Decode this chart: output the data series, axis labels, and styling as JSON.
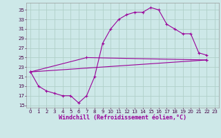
{
  "background_color": "#cde8e8",
  "grid_color": "#b0d0c8",
  "line_color": "#990099",
  "marker": "+",
  "xlabel": "Windchill (Refroidissement éolien,°C)",
  "xlabel_fontsize": 6,
  "xlim": [
    -0.5,
    23.5
  ],
  "ylim": [
    14.5,
    36.5
  ],
  "xticks": [
    0,
    1,
    2,
    3,
    4,
    5,
    6,
    7,
    8,
    9,
    10,
    11,
    12,
    13,
    14,
    15,
    16,
    17,
    18,
    19,
    20,
    21,
    22,
    23
  ],
  "yticks": [
    15,
    17,
    19,
    21,
    23,
    25,
    27,
    29,
    31,
    33,
    35
  ],
  "tick_fontsize": 5,
  "line1_x": [
    0,
    1,
    2,
    3,
    4,
    5,
    6,
    7,
    8,
    9,
    10,
    11,
    12,
    13,
    14,
    15,
    16,
    17,
    18,
    19,
    20,
    21,
    22
  ],
  "line1_y": [
    22,
    19,
    18,
    17.5,
    17,
    17,
    15.5,
    17,
    21,
    28,
    31,
    33,
    34,
    34.5,
    34.5,
    35.5,
    35,
    32,
    31,
    30,
    30,
    26,
    25.5
  ],
  "line2_x": [
    0,
    22
  ],
  "line2_y": [
    22,
    24.5
  ],
  "line3_x": [
    0,
    7,
    22
  ],
  "line3_y": [
    22,
    25,
    24.5
  ]
}
